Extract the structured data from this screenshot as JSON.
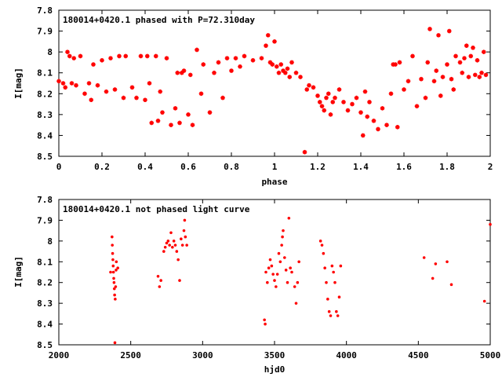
{
  "chart_data": [
    {
      "type": "scatter",
      "title": "180014+0420.1 phased with P=72.310day",
      "xlabel": "phase",
      "ylabel": "I[mag]",
      "xlim": [
        0,
        2
      ],
      "ylim": [
        8.5,
        7.8
      ],
      "y_inverted": true,
      "grid": false,
      "xticks": [
        0,
        0.2,
        0.4,
        0.6,
        0.8,
        1,
        1.2,
        1.4,
        1.6,
        1.8,
        2
      ],
      "xtick_labels": [
        "0",
        "0.2",
        "0.4",
        "0.6",
        "0.8",
        "1",
        "1.2",
        "1.4",
        "1.6",
        "1.8",
        "2"
      ],
      "yticks": [
        7.8,
        7.9,
        8,
        8.1,
        8.2,
        8.3,
        8.4,
        8.5
      ],
      "ytick_labels": [
        "7.8",
        "7.9",
        "8",
        "8.1",
        "8.2",
        "8.3",
        "8.4",
        "8.5"
      ],
      "marker_color": "#ff0000",
      "series": [
        {
          "points": [
            [
              0.0,
              8.14
            ],
            [
              0.02,
              8.15
            ],
            [
              0.03,
              8.17
            ],
            [
              0.04,
              8.0
            ],
            [
              0.05,
              8.02
            ],
            [
              0.06,
              8.15
            ],
            [
              0.07,
              8.03
            ],
            [
              0.08,
              8.16
            ],
            [
              0.1,
              8.02
            ],
            [
              0.12,
              8.2
            ],
            [
              0.14,
              8.15
            ],
            [
              0.15,
              8.23
            ],
            [
              0.16,
              8.06
            ],
            [
              0.18,
              8.16
            ],
            [
              0.2,
              8.04
            ],
            [
              0.22,
              8.19
            ],
            [
              0.24,
              8.03
            ],
            [
              0.26,
              8.18
            ],
            [
              0.28,
              8.02
            ],
            [
              0.3,
              8.22
            ],
            [
              0.31,
              8.02
            ],
            [
              0.34,
              8.17
            ],
            [
              0.36,
              8.22
            ],
            [
              0.38,
              8.02
            ],
            [
              0.4,
              8.23
            ],
            [
              0.41,
              8.02
            ],
            [
              0.42,
              8.15
            ],
            [
              0.43,
              8.34
            ],
            [
              0.45,
              8.02
            ],
            [
              0.46,
              8.33
            ],
            [
              0.47,
              8.19
            ],
            [
              0.48,
              8.29
            ],
            [
              0.5,
              8.03
            ],
            [
              0.52,
              8.35
            ],
            [
              0.54,
              8.27
            ],
            [
              0.55,
              8.1
            ],
            [
              0.56,
              8.34
            ],
            [
              0.57,
              8.1
            ],
            [
              0.58,
              8.09
            ],
            [
              0.6,
              8.3
            ],
            [
              0.61,
              8.11
            ],
            [
              0.62,
              8.35
            ],
            [
              0.64,
              7.99
            ],
            [
              0.66,
              8.2
            ],
            [
              0.67,
              8.06
            ],
            [
              0.7,
              8.29
            ],
            [
              0.72,
              8.1
            ],
            [
              0.74,
              8.05
            ],
            [
              0.76,
              8.22
            ],
            [
              0.78,
              8.03
            ],
            [
              0.8,
              8.09
            ],
            [
              0.82,
              8.03
            ],
            [
              0.84,
              8.07
            ],
            [
              0.86,
              8.02
            ],
            [
              0.9,
              8.04
            ],
            [
              0.94,
              8.03
            ],
            [
              0.96,
              7.97
            ],
            [
              0.97,
              7.92
            ],
            [
              0.98,
              8.05
            ],
            [
              0.99,
              8.06
            ],
            [
              1.0,
              7.95
            ],
            [
              1.01,
              8.07
            ],
            [
              1.02,
              8.1
            ],
            [
              1.03,
              8.06
            ],
            [
              1.04,
              8.09
            ],
            [
              1.05,
              8.1
            ],
            [
              1.06,
              8.08
            ],
            [
              1.07,
              8.12
            ],
            [
              1.08,
              8.05
            ],
            [
              1.1,
              8.1
            ],
            [
              1.12,
              8.12
            ],
            [
              1.14,
              8.48
            ],
            [
              1.15,
              8.18
            ],
            [
              1.16,
              8.16
            ],
            [
              1.18,
              8.17
            ],
            [
              1.2,
              8.21
            ],
            [
              1.21,
              8.24
            ],
            [
              1.22,
              8.26
            ],
            [
              1.23,
              8.28
            ],
            [
              1.24,
              8.22
            ],
            [
              1.25,
              8.2
            ],
            [
              1.26,
              8.3
            ],
            [
              1.27,
              8.24
            ],
            [
              1.28,
              8.22
            ],
            [
              1.3,
              8.18
            ],
            [
              1.32,
              8.24
            ],
            [
              1.34,
              8.28
            ],
            [
              1.36,
              8.25
            ],
            [
              1.38,
              8.22
            ],
            [
              1.4,
              8.29
            ],
            [
              1.41,
              8.4
            ],
            [
              1.42,
              8.19
            ],
            [
              1.43,
              8.31
            ],
            [
              1.44,
              8.24
            ],
            [
              1.46,
              8.33
            ],
            [
              1.48,
              8.37
            ],
            [
              1.5,
              8.27
            ],
            [
              1.52,
              8.35
            ],
            [
              1.54,
              8.2
            ],
            [
              1.55,
              8.06
            ],
            [
              1.56,
              8.06
            ],
            [
              1.57,
              8.36
            ],
            [
              1.58,
              8.05
            ],
            [
              1.6,
              8.18
            ],
            [
              1.62,
              8.14
            ],
            [
              1.64,
              8.02
            ],
            [
              1.66,
              8.26
            ],
            [
              1.68,
              8.13
            ],
            [
              1.7,
              8.22
            ],
            [
              1.71,
              8.05
            ],
            [
              1.72,
              7.89
            ],
            [
              1.74,
              8.14
            ],
            [
              1.75,
              8.09
            ],
            [
              1.76,
              7.92
            ],
            [
              1.77,
              8.21
            ],
            [
              1.78,
              8.12
            ],
            [
              1.8,
              8.06
            ],
            [
              1.81,
              7.9
            ],
            [
              1.82,
              8.13
            ],
            [
              1.83,
              8.18
            ],
            [
              1.84,
              8.02
            ],
            [
              1.86,
              8.05
            ],
            [
              1.87,
              8.1
            ],
            [
              1.88,
              8.03
            ],
            [
              1.89,
              7.97
            ],
            [
              1.9,
              8.12
            ],
            [
              1.91,
              8.02
            ],
            [
              1.92,
              7.98
            ],
            [
              1.93,
              8.11
            ],
            [
              1.94,
              8.04
            ],
            [
              1.95,
              8.12
            ],
            [
              1.96,
              8.1
            ],
            [
              1.97,
              8.0
            ],
            [
              1.98,
              8.11
            ]
          ]
        }
      ]
    },
    {
      "type": "scatter",
      "title": "180014+0420.1 not phased light curve",
      "xlabel": "hjd0",
      "ylabel": "I[mag]",
      "xlim": [
        2000,
        5000
      ],
      "ylim": [
        8.5,
        7.8
      ],
      "y_inverted": true,
      "grid": false,
      "xticks": [
        2000,
        2500,
        3000,
        3500,
        4000,
        4500,
        5000
      ],
      "xtick_labels": [
        "2000",
        "2500",
        "3000",
        "3500",
        "4000",
        "4500",
        "5000"
      ],
      "yticks": [
        7.8,
        7.9,
        8,
        8.1,
        8.2,
        8.3,
        8.4,
        8.5
      ],
      "ytick_labels": [
        "7.8",
        "7.9",
        "8",
        "8.1",
        "8.2",
        "8.3",
        "8.4",
        "8.5"
      ],
      "marker_color": "#ff0000",
      "series": [
        {
          "points": [
            [
              2360,
              8.15
            ],
            [
              2370,
              7.98
            ],
            [
              2372,
              8.02
            ],
            [
              2374,
              8.06
            ],
            [
              2376,
              8.09
            ],
            [
              2378,
              8.12
            ],
            [
              2380,
              8.15
            ],
            [
              2382,
              8.18
            ],
            [
              2384,
              8.2
            ],
            [
              2386,
              8.23
            ],
            [
              2388,
              8.26
            ],
            [
              2390,
              8.49
            ],
            [
              2392,
              8.28
            ],
            [
              2395,
              8.22
            ],
            [
              2398,
              8.14
            ],
            [
              2400,
              8.1
            ],
            [
              2410,
              8.13
            ],
            [
              2690,
              8.17
            ],
            [
              2700,
              8.22
            ],
            [
              2710,
              8.19
            ],
            [
              2730,
              8.05
            ],
            [
              2740,
              8.03
            ],
            [
              2750,
              8.01
            ],
            [
              2760,
              8.0
            ],
            [
              2770,
              8.02
            ],
            [
              2780,
              7.96
            ],
            [
              2790,
              8.03
            ],
            [
              2800,
              8.0
            ],
            [
              2810,
              8.02
            ],
            [
              2820,
              8.05
            ],
            [
              2830,
              8.09
            ],
            [
              2840,
              8.19
            ],
            [
              2850,
              7.99
            ],
            [
              2860,
              8.02
            ],
            [
              2870,
              7.95
            ],
            [
              2875,
              7.9
            ],
            [
              2880,
              7.98
            ],
            [
              2890,
              8.02
            ],
            [
              3430,
              8.38
            ],
            [
              3435,
              8.4
            ],
            [
              3440,
              8.15
            ],
            [
              3450,
              8.2
            ],
            [
              3460,
              8.13
            ],
            [
              3470,
              8.09
            ],
            [
              3480,
              8.12
            ],
            [
              3490,
              8.16
            ],
            [
              3500,
              8.19
            ],
            [
              3510,
              8.22
            ],
            [
              3520,
              8.16
            ],
            [
              3530,
              8.06
            ],
            [
              3540,
              8.1
            ],
            [
              3550,
              8.02
            ],
            [
              3555,
              7.98
            ],
            [
              3560,
              7.95
            ],
            [
              3570,
              8.08
            ],
            [
              3580,
              8.14
            ],
            [
              3590,
              8.2
            ],
            [
              3600,
              7.89
            ],
            [
              3610,
              8.13
            ],
            [
              3620,
              8.15
            ],
            [
              3640,
              8.22
            ],
            [
              3650,
              8.3
            ],
            [
              3660,
              8.2
            ],
            [
              3670,
              8.1
            ],
            [
              3820,
              8.0
            ],
            [
              3830,
              8.02
            ],
            [
              3840,
              8.06
            ],
            [
              3850,
              8.13
            ],
            [
              3860,
              8.2
            ],
            [
              3870,
              8.28
            ],
            [
              3880,
              8.34
            ],
            [
              3890,
              8.36
            ],
            [
              3900,
              8.12
            ],
            [
              3910,
              8.15
            ],
            [
              3920,
              8.2
            ],
            [
              3930,
              8.34
            ],
            [
              3940,
              8.36
            ],
            [
              3950,
              8.27
            ],
            [
              3960,
              8.12
            ],
            [
              4540,
              8.08
            ],
            [
              4600,
              8.18
            ],
            [
              4620,
              8.11
            ],
            [
              4700,
              8.1
            ],
            [
              4730,
              8.21
            ],
            [
              4960,
              8.29
            ],
            [
              5000,
              7.92
            ]
          ]
        }
      ]
    }
  ]
}
